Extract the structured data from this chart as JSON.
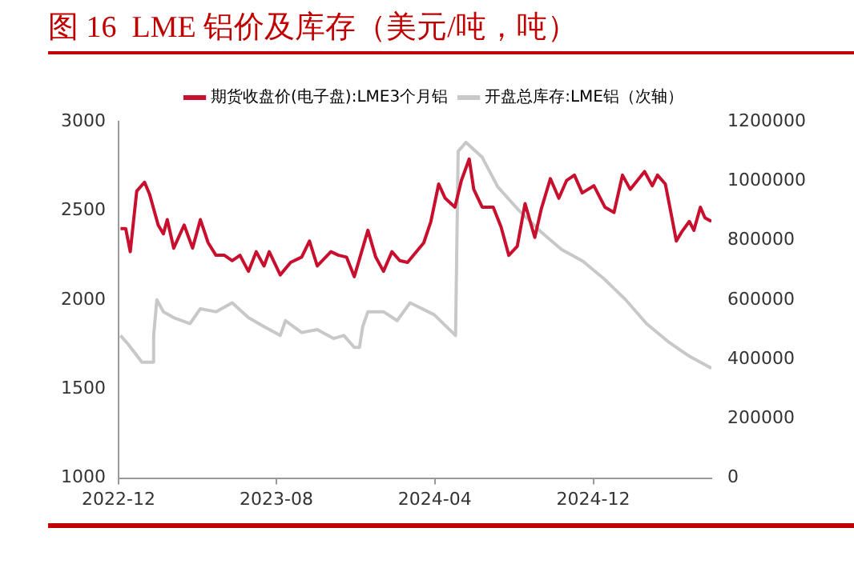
{
  "chart_data": {
    "type": "line",
    "title": "图 16  LME 铝价及库存（美元/吨，吨）",
    "legend": "top",
    "grid": false,
    "marker": "none",
    "line_style": "solid",
    "xlim": [
      "2022-12",
      "2025-06"
    ],
    "xticks": [
      "2022-12",
      "2023-08",
      "2024-04",
      "2024-12"
    ],
    "ylim": [
      1000,
      3000
    ],
    "yticks": [
      1000,
      1500,
      2000,
      2500,
      3000
    ],
    "y2lim": [
      0,
      1200000
    ],
    "y2ticks": [
      0,
      200000,
      400000,
      600000,
      800000,
      1000000,
      1200000
    ],
    "series": [
      {
        "name": "期货收盘价(电子盘):LME3个月铝",
        "color": "#c8102e",
        "x": [
          "2022-12-04",
          "2022-12-12",
          "2022-12-19",
          "2022-12-29",
          "2023-01-10",
          "2023-01-18",
          "2023-01-31",
          "2023-02-08",
          "2023-02-14",
          "2023-02-24",
          "2023-03-12",
          "2023-03-25",
          "2023-04-06",
          "2023-04-18",
          "2023-04-30",
          "2023-05-13",
          "2023-05-25",
          "2023-06-06",
          "2023-06-19",
          "2023-07-01",
          "2023-07-13",
          "2023-07-21",
          "2023-08-07",
          "2023-08-23",
          "2023-09-09",
          "2023-09-21",
          "2023-10-03",
          "2023-10-24",
          "2023-11-05",
          "2023-11-17",
          "2023-11-29",
          "2023-12-20",
          "2024-01-01",
          "2024-01-13",
          "2024-01-26",
          "2024-02-07",
          "2024-02-19",
          "2024-03-15",
          "2024-03-26",
          "2024-04-07",
          "2024-04-17",
          "2024-05-02",
          "2024-05-12",
          "2024-05-24",
          "2024-05-31",
          "2024-06-13",
          "2024-06-30",
          "2024-07-12",
          "2024-07-24",
          "2024-08-06",
          "2024-08-18",
          "2024-09-02",
          "2024-09-12",
          "2024-09-26",
          "2024-10-09",
          "2024-10-21",
          "2024-11-02",
          "2024-11-14",
          "2024-12-02",
          "2024-12-19",
          "2025-01-02",
          "2025-01-15",
          "2025-01-27",
          "2025-02-18",
          "2025-03-02",
          "2025-03-10",
          "2025-03-22",
          "2025-03-29",
          "2025-04-08",
          "2025-04-16",
          "2025-04-28",
          "2025-05-05",
          "2025-05-15",
          "2025-05-22",
          "2025-06-01"
        ],
        "values": [
          2400,
          2400,
          2270,
          2610,
          2660,
          2590,
          2420,
          2370,
          2450,
          2290,
          2420,
          2290,
          2450,
          2320,
          2250,
          2250,
          2220,
          2250,
          2160,
          2270,
          2190,
          2270,
          2140,
          2210,
          2240,
          2330,
          2190,
          2270,
          2250,
          2240,
          2130,
          2390,
          2240,
          2160,
          2270,
          2220,
          2210,
          2320,
          2440,
          2650,
          2570,
          2520,
          2670,
          2790,
          2620,
          2520,
          2520,
          2410,
          2250,
          2300,
          2540,
          2350,
          2510,
          2680,
          2570,
          2670,
          2700,
          2600,
          2640,
          2520,
          2490,
          2700,
          2620,
          2720,
          2640,
          2700,
          2650,
          2520,
          2330,
          2380,
          2440,
          2390,
          2520,
          2460,
          2440
        ]
      },
      {
        "name": "开盘总库存:LME铝（次轴）",
        "color": "#c8c8c8",
        "axis": "y2",
        "x": [
          "2022-12-04",
          "2022-12-16",
          "2023-01-06",
          "2023-01-22",
          "2023-01-24",
          "2023-01-29",
          "2023-02-08",
          "2023-02-24",
          "2023-03-21",
          "2023-04-06",
          "2023-04-30",
          "2023-05-25",
          "2023-06-19",
          "2023-07-13",
          "2023-08-07",
          "2023-08-15",
          "2023-09-09",
          "2023-10-03",
          "2023-10-28",
          "2023-11-13",
          "2023-11-29",
          "2023-12-07",
          "2023-12-12",
          "2023-12-20",
          "2024-01-13",
          "2024-02-03",
          "2024-02-23",
          "2024-03-31",
          "2024-05-03",
          "2024-05-07",
          "2024-05-19",
          "2024-06-13",
          "2024-07-07",
          "2024-08-09",
          "2024-09-11",
          "2024-10-13",
          "2024-11-15",
          "2024-12-18",
          "2025-01-20",
          "2025-02-21",
          "2025-03-26",
          "2025-04-28",
          "2025-06-01"
        ],
        "values": [
          480000,
          450000,
          390000,
          390000,
          480000,
          600000,
          560000,
          540000,
          520000,
          570000,
          560000,
          590000,
          540000,
          510000,
          480000,
          530000,
          490000,
          500000,
          470000,
          480000,
          440000,
          440000,
          510000,
          560000,
          560000,
          530000,
          590000,
          550000,
          480000,
          1100000,
          1130000,
          1080000,
          980000,
          900000,
          830000,
          770000,
          730000,
          670000,
          600000,
          520000,
          460000,
          410000,
          370000
        ]
      }
    ]
  }
}
